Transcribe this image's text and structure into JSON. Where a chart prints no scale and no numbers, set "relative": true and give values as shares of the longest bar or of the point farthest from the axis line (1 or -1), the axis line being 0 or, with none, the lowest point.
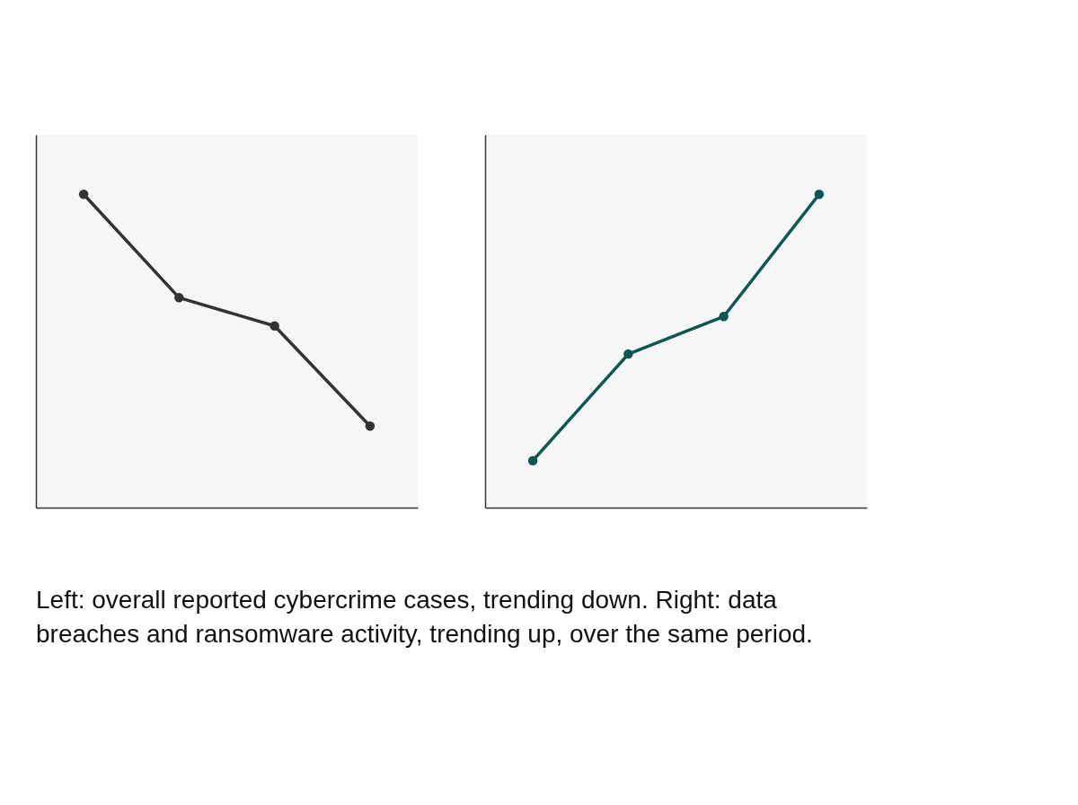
{
  "chart_data": [
    {
      "type": "line",
      "relative": true,
      "categories": [
        null,
        null,
        null,
        null
      ],
      "marker": "circle",
      "line_style": "solid",
      "grid": false,
      "tick_labels": false,
      "series": [
        {
          "color": "#333333",
          "values": [
            1,
            0.67,
            0.58,
            0.26
          ]
        }
      ]
    },
    {
      "type": "line",
      "relative": true,
      "categories": [
        null,
        null,
        null,
        null
      ],
      "marker": "circle",
      "line_style": "solid",
      "grid": false,
      "tick_labels": false,
      "series": [
        {
          "color": "#0e5650",
          "values": [
            0.15,
            0.49,
            0.61,
            1
          ]
        }
      ],
      "annotations": [
        "Left: overall reported cybercrime cases, trending down. Right: data breaches and ransomware activity, trending up, over the same period."
      ]
    }
  ]
}
